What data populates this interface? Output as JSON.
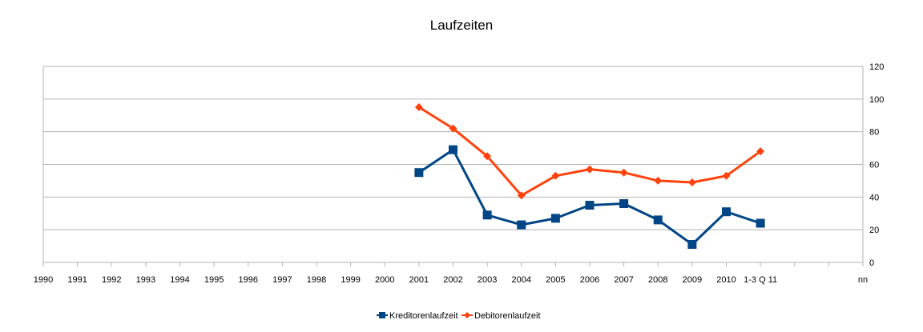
{
  "chart_data": {
    "type": "line",
    "title": "Laufzeiten",
    "categories": [
      "1990",
      "1991",
      "1992",
      "1993",
      "1994",
      "1995",
      "1996",
      "1997",
      "1998",
      "1999",
      "2000",
      "2001",
      "2002",
      "2003",
      "2004",
      "2005",
      "2006",
      "2007",
      "2008",
      "2009",
      "2010",
      "1-3 Q 11",
      "",
      "",
      "nn"
    ],
    "series": [
      {
        "name": "Kreditorenlaufzeit",
        "color": "#004586",
        "marker": "square",
        "values": [
          null,
          null,
          null,
          null,
          null,
          null,
          null,
          null,
          null,
          null,
          null,
          55,
          69,
          29,
          23,
          27,
          35,
          36,
          26,
          11,
          31,
          24,
          null,
          null,
          null
        ]
      },
      {
        "name": "Debitorenlaufzeit",
        "color": "#ff420e",
        "marker": "diamond",
        "values": [
          null,
          null,
          null,
          null,
          null,
          null,
          null,
          null,
          null,
          null,
          null,
          95,
          82,
          65,
          41,
          53,
          57,
          55,
          50,
          49,
          53,
          68,
          null,
          null,
          null
        ]
      }
    ],
    "y_axis": {
      "side": "right",
      "ylim": [
        0,
        120
      ],
      "ticks": [
        0,
        20,
        40,
        60,
        80,
        100,
        120
      ]
    },
    "grid": true,
    "legend": "bottom"
  }
}
